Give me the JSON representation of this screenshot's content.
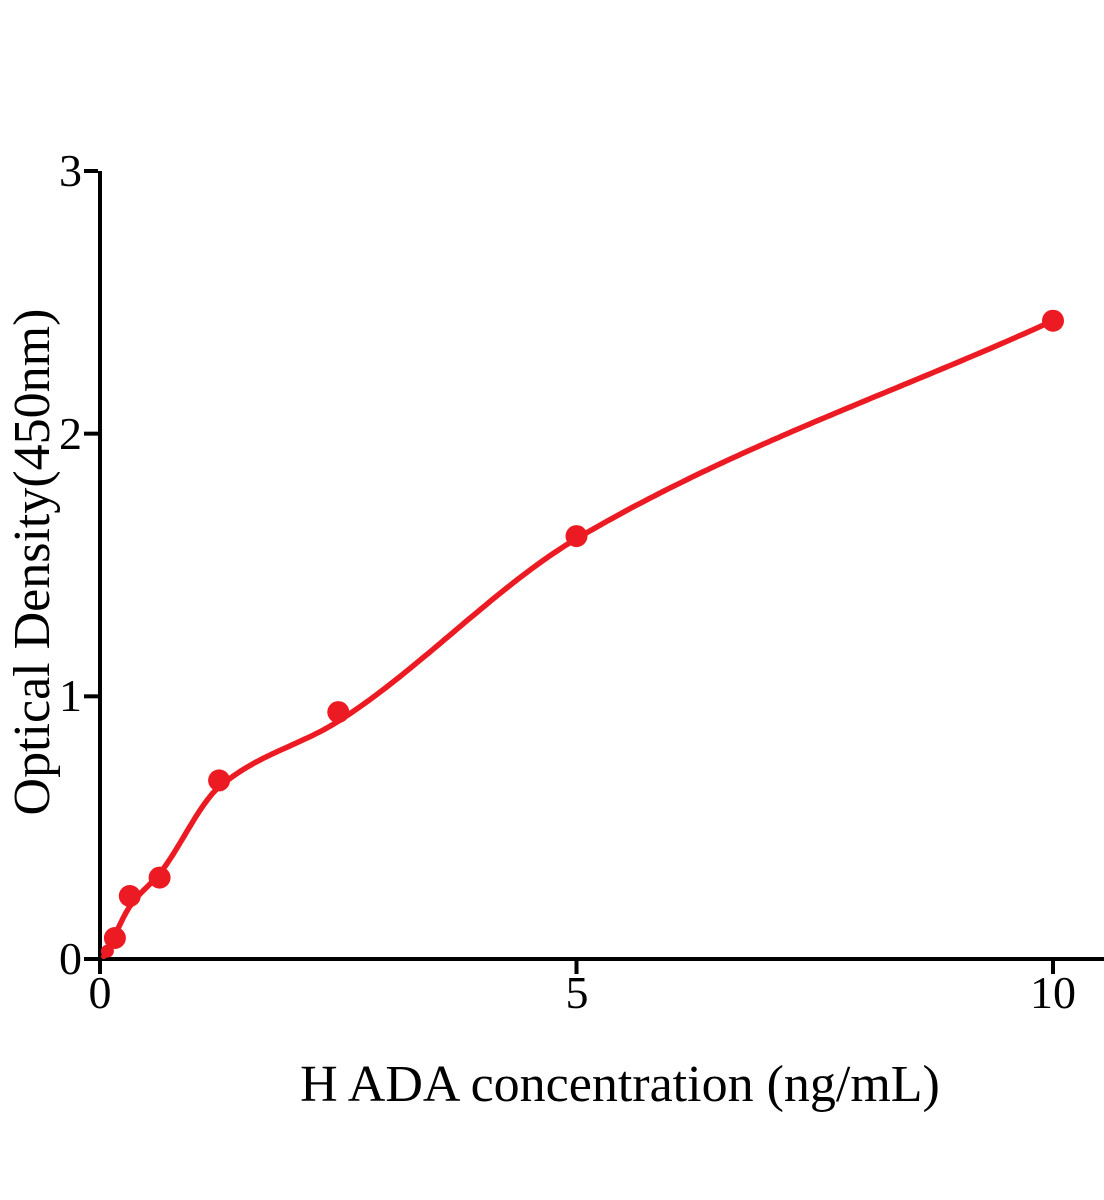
{
  "chart_data": {
    "type": "scatter",
    "title": "",
    "xlabel": "H ADA concentration (ng/mL)",
    "ylabel": "Optical Density(450nm)",
    "x": [
      0.078,
      0.156,
      0.3125,
      0.625,
      1.25,
      2.5,
      5,
      10
    ],
    "y": [
      0.03,
      0.08,
      0.24,
      0.31,
      0.68,
      0.94,
      1.61,
      2.43
    ],
    "fit_curve": true,
    "xlim": [
      0,
      10.55
    ],
    "ylim": [
      0,
      3
    ],
    "xticks": [
      0,
      5,
      10
    ],
    "xtick_labels": [
      "0",
      "5",
      "10"
    ],
    "yticks": [
      0,
      1,
      2,
      3
    ],
    "ytick_labels": [
      "0",
      "1",
      "2",
      "3"
    ],
    "grid": false,
    "legend": null,
    "colors": {
      "curve": "#ec1b23",
      "marker": "#ec1b23",
      "axis": "#000000",
      "text": "#000000",
      "background": "#ffffff"
    }
  }
}
